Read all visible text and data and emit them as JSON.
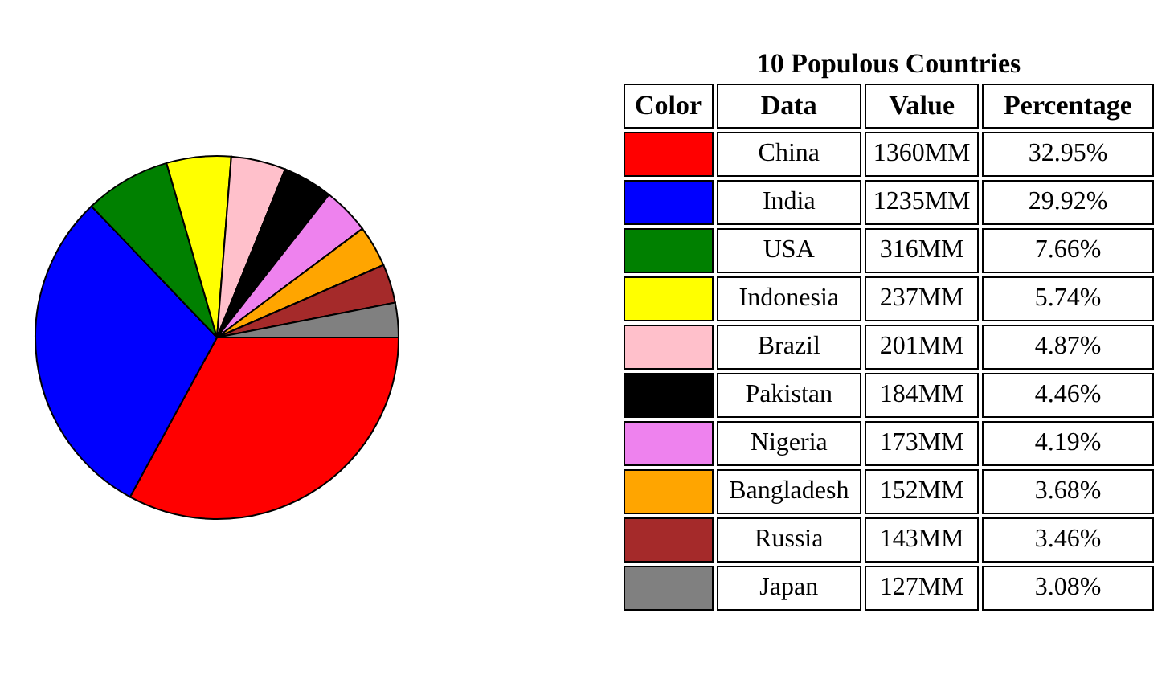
{
  "chart_data": {
    "type": "pie",
    "legend_title": "10 Populous Countries",
    "legend": "right",
    "categories": [
      "China",
      "India",
      "USA",
      "Indonesia",
      "Brazil",
      "Pakistan",
      "Nigeria",
      "Bangladesh",
      "Russia",
      "Japan"
    ],
    "values": [
      1360,
      1235,
      316,
      237,
      201,
      184,
      173,
      152,
      143,
      127
    ],
    "colors": [
      "#ff0000",
      "#0000ff",
      "#008000",
      "#ffff00",
      "#ffc0cb",
      "#000000",
      "#ee82ee",
      "#ffa500",
      "#a52a2a",
      "#808080"
    ],
    "value_labels": [
      "1360MM",
      "1235MM",
      "316MM",
      "237MM",
      "201MM",
      "184MM",
      "173MM",
      "152MM",
      "143MM",
      "127MM"
    ],
    "annotations": [
      "Color",
      "Data",
      "Value",
      "Percentage",
      "32.95%",
      "29.92%",
      "7.66%",
      "5.74%",
      "4.87%",
      "4.46%",
      "4.19%",
      "3.68%",
      "3.46%",
      "3.08%"
    ]
  }
}
